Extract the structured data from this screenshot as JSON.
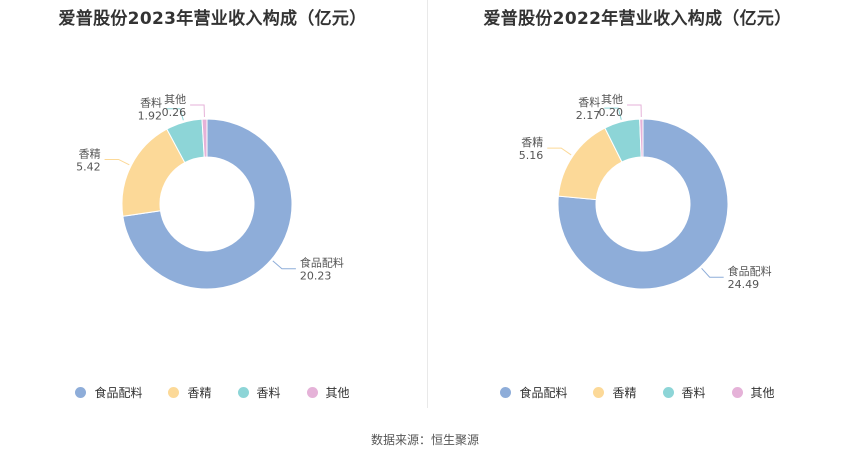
{
  "source_text": "数据来源：恒生聚源",
  "chart_data": [
    {
      "type": "pie",
      "title": "爱普股份2023年营业收入构成（亿元）",
      "categories": [
        "食品配料",
        "香精",
        "香料",
        "其他"
      ],
      "values": [
        20.23,
        5.42,
        1.92,
        0.26
      ],
      "value_labels": [
        "20.23",
        "5.42",
        "1.92",
        "0.26"
      ],
      "colors": [
        "#8eadd9",
        "#fcd998",
        "#8dd5d7",
        "#e5b2d8"
      ],
      "legend": "bottom"
    },
    {
      "type": "pie",
      "title": "爱普股份2022年营业收入构成（亿元）",
      "categories": [
        "食品配料",
        "香精",
        "香料",
        "其他"
      ],
      "values": [
        24.49,
        5.16,
        2.17,
        0.2
      ],
      "value_labels": [
        "24.49",
        "5.16",
        "2.17",
        "0.20"
      ],
      "colors": [
        "#8eadd9",
        "#fcd998",
        "#8dd5d7",
        "#e5b2d8"
      ],
      "legend": "bottom"
    }
  ]
}
